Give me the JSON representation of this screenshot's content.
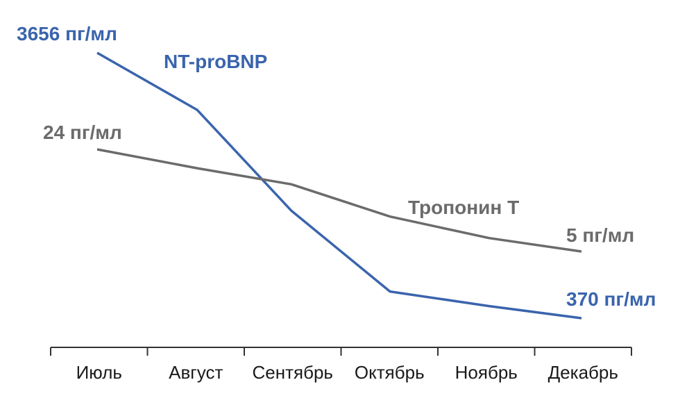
{
  "chart_data": {
    "type": "line",
    "categories": [
      "Июль",
      "Август",
      "Сентябрь",
      "Октябрь",
      "Ноябрь",
      "Декабрь"
    ],
    "series": [
      {
        "name": "NT-proBNP",
        "color": "#3a64ad",
        "values": [
          3656,
          2950,
          1700,
          700,
          520,
          370
        ],
        "start_label": "3656 пг/мл",
        "end_label": "370 пг/мл"
      },
      {
        "name": "Тропонин Т",
        "color": "#6b6b6b",
        "values": [
          24,
          20.5,
          17.5,
          11.5,
          7.5,
          5
        ],
        "start_label": "24 пг/мл",
        "end_label": "5 пг/мл"
      }
    ],
    "xlabel": "",
    "ylabel": "",
    "grid": false,
    "legend": "inline labels"
  }
}
